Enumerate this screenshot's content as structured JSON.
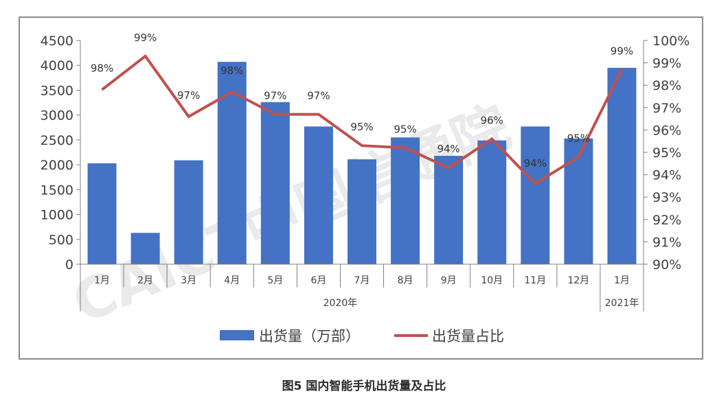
{
  "caption": "图5  国内智能手机出货量及占比",
  "watermark": "CAICT中国信通院",
  "colors": {
    "bar": "#4472C4",
    "line": "#C0504D",
    "axis": "#7f7f7f",
    "text": "#404040"
  },
  "chart_data": {
    "type": "bar",
    "categories": [
      "1月",
      "2月",
      "3月",
      "4月",
      "5月",
      "6月",
      "7月",
      "8月",
      "9月",
      "10月",
      "11月",
      "12月",
      "1月"
    ],
    "year_groups": [
      {
        "label": "2020年",
        "count": 12
      },
      {
        "label": "2021年",
        "count": 1
      }
    ],
    "series": [
      {
        "name": "出货量（万部）",
        "type": "bar",
        "axis": "left",
        "values": [
          2030,
          630,
          2090,
          4070,
          3260,
          2770,
          2110,
          2550,
          2180,
          2490,
          2770,
          2530,
          3950
        ]
      },
      {
        "name": "出货量占比",
        "type": "line",
        "axis": "right",
        "values": [
          97.8,
          99.3,
          96.6,
          97.7,
          96.7,
          96.7,
          95.3,
          95.2,
          94.3,
          95.6,
          93.6,
          94.8,
          98.7
        ],
        "labels": [
          "98%",
          "99%",
          "97%",
          "98%",
          "97%",
          "97%",
          "95%",
          "95%",
          "94%",
          "96%",
          "94%",
          "95%",
          "99%"
        ]
      }
    ],
    "ylim_left": [
      0,
      4500
    ],
    "yticks_left": [
      "0",
      "500",
      "1000",
      "1500",
      "2000",
      "2500",
      "3000",
      "3500",
      "4000",
      "4500"
    ],
    "ylim_right": [
      90,
      100
    ],
    "yticks_right": [
      "90%",
      "91%",
      "92%",
      "93%",
      "94%",
      "95%",
      "96%",
      "97%",
      "98%",
      "99%",
      "100%"
    ],
    "legend_position": "bottom",
    "grid": false
  }
}
